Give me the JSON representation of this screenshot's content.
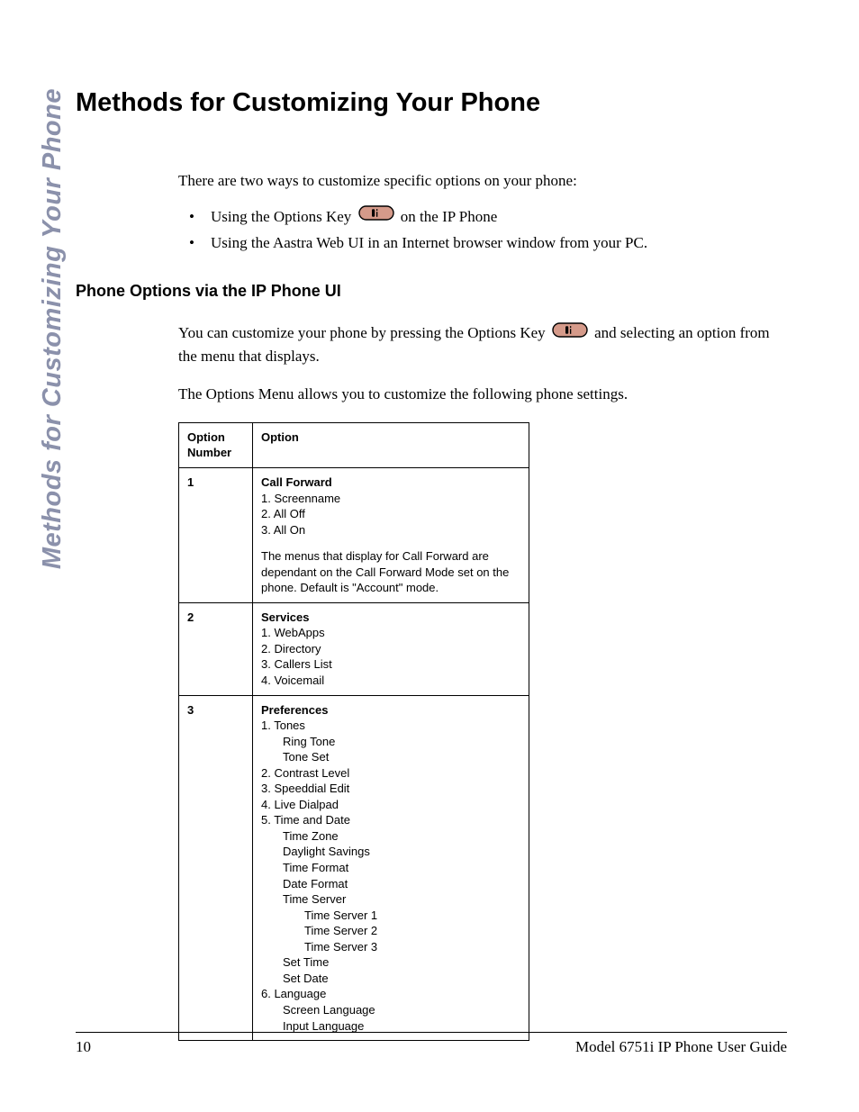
{
  "sidebar_title": "Methods for Customizing Your Phone",
  "h1": "Methods for Customizing Your Phone",
  "intro": "There are two ways to customize specific options on your phone:",
  "bullets": {
    "b1_pre": "Using the Options Key ",
    "b1_post": " on the IP Phone",
    "b2": "Using the Aastra Web UI in an Internet browser window from your PC."
  },
  "h2": "Phone Options via the IP Phone UI",
  "para1_pre": "You can customize your phone by pressing the Options Key ",
  "para1_post": " and selecting an option from the menu that displays.",
  "para2": "The Options Menu allows you to customize the following phone settings.",
  "table": {
    "header_num": "Option Number",
    "header_opt": "Option",
    "rows": [
      {
        "num": "1",
        "title": "Call Forward",
        "lines": [
          "1. Screenname",
          "2. All Off",
          "3. All On"
        ],
        "note": "The menus that display for Call Forward are dependant on the Call Forward Mode set on the phone. Default is \"Account\" mode."
      },
      {
        "num": "2",
        "title": "Services",
        "lines": [
          "1. WebApps",
          "2. Directory",
          "3. Callers List",
          "4. Voicemail"
        ]
      },
      {
        "num": "3",
        "title": "Preferences",
        "nested": [
          {
            "t": "1. Tones",
            "i": 0
          },
          {
            "t": "Ring Tone",
            "i": 1
          },
          {
            "t": "Tone Set",
            "i": 1
          },
          {
            "t": "2. Contrast Level",
            "i": 0
          },
          {
            "t": "3. Speeddial Edit",
            "i": 0
          },
          {
            "t": "4. Live Dialpad",
            "i": 0
          },
          {
            "t": "5. Time and Date",
            "i": 0
          },
          {
            "t": "Time Zone",
            "i": 1
          },
          {
            "t": "Daylight Savings",
            "i": 1
          },
          {
            "t": "Time Format",
            "i": 1
          },
          {
            "t": "Date Format",
            "i": 1
          },
          {
            "t": "Time Server",
            "i": 1
          },
          {
            "t": "Time Server 1",
            "i": 2
          },
          {
            "t": "Time Server 2",
            "i": 2
          },
          {
            "t": "Time Server 3",
            "i": 2
          },
          {
            "t": "Set Time",
            "i": 1
          },
          {
            "t": "Set Date",
            "i": 1
          },
          {
            "t": "6. Language",
            "i": 0
          },
          {
            "t": "Screen Language",
            "i": 1
          },
          {
            "t": "Input Language",
            "i": 1
          }
        ]
      }
    ]
  },
  "footer": {
    "page": "10",
    "doc": "Model 6751i IP Phone User Guide"
  },
  "icon": {
    "fill": "#d59a8a",
    "stroke": "#000000"
  }
}
